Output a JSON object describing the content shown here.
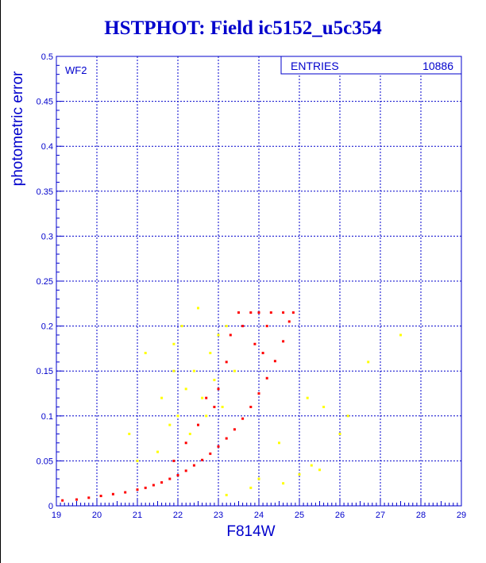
{
  "page": {
    "title": "HSTPHOT: Field ic5152_u5c354"
  },
  "stats_box": {
    "entries_label": "ENTRIES",
    "entries_value": "10886"
  },
  "chart_data": {
    "type": "scatter",
    "title": "HSTPHOT: Field ic5152_u5c354",
    "panel_label": "WF2",
    "xlabel": "F814W",
    "ylabel": "photometric error",
    "xlim": [
      19,
      29
    ],
    "ylim": [
      0,
      0.5
    ],
    "x_ticks": [
      19,
      20,
      21,
      22,
      23,
      24,
      25,
      26,
      27,
      28,
      29
    ],
    "y_ticks": [
      0,
      0.05,
      0.1,
      0.15,
      0.2,
      0.25,
      0.3,
      0.35,
      0.4,
      0.45,
      0.5
    ],
    "grid": true,
    "colors": {
      "axis": "#0000cc",
      "main_sequence": "#ff0000",
      "scatter": "#ffff00"
    },
    "series": [
      {
        "color": "#ff0000",
        "points": [
          [
            19.15,
            0.006
          ],
          [
            19.5,
            0.007
          ],
          [
            19.8,
            0.009
          ],
          [
            20.1,
            0.011
          ],
          [
            20.4,
            0.013
          ],
          [
            20.7,
            0.015
          ],
          [
            21.0,
            0.018
          ],
          [
            21.2,
            0.02
          ],
          [
            21.4,
            0.023
          ],
          [
            21.6,
            0.026
          ],
          [
            21.8,
            0.03
          ],
          [
            22.0,
            0.034
          ],
          [
            22.2,
            0.039
          ],
          [
            22.4,
            0.045
          ],
          [
            22.6,
            0.051
          ],
          [
            22.8,
            0.058
          ],
          [
            23.0,
            0.066
          ],
          [
            23.2,
            0.075
          ],
          [
            23.4,
            0.085
          ],
          [
            23.6,
            0.097
          ],
          [
            23.8,
            0.11
          ],
          [
            24.0,
            0.125
          ],
          [
            24.2,
            0.142
          ],
          [
            24.4,
            0.161
          ],
          [
            24.6,
            0.183
          ],
          [
            24.75,
            0.205
          ],
          [
            24.85,
            0.215
          ],
          [
            23.5,
            0.215
          ],
          [
            23.8,
            0.215
          ],
          [
            24.0,
            0.215
          ],
          [
            24.3,
            0.215
          ],
          [
            24.6,
            0.215
          ],
          [
            23.2,
            0.16
          ],
          [
            23.0,
            0.13
          ],
          [
            22.9,
            0.11
          ],
          [
            23.3,
            0.19
          ],
          [
            23.6,
            0.2
          ],
          [
            24.2,
            0.2
          ],
          [
            22.5,
            0.09
          ],
          [
            22.7,
            0.12
          ],
          [
            22.2,
            0.07
          ],
          [
            21.9,
            0.05
          ],
          [
            23.9,
            0.18
          ],
          [
            24.1,
            0.17
          ]
        ]
      },
      {
        "color": "#ffff00",
        "points": [
          [
            22.0,
            0.1
          ],
          [
            22.2,
            0.13
          ],
          [
            22.4,
            0.15
          ],
          [
            22.6,
            0.12
          ],
          [
            22.8,
            0.17
          ],
          [
            23.0,
            0.19
          ],
          [
            22.3,
            0.08
          ],
          [
            21.8,
            0.09
          ],
          [
            21.6,
            0.12
          ],
          [
            21.5,
            0.06
          ],
          [
            22.9,
            0.14
          ],
          [
            23.2,
            0.2
          ],
          [
            21.9,
            0.18
          ],
          [
            21.2,
            0.17
          ],
          [
            21.0,
            0.05
          ],
          [
            20.8,
            0.08
          ],
          [
            23.4,
            0.15
          ],
          [
            24.5,
            0.07
          ],
          [
            24.0,
            0.03
          ],
          [
            24.6,
            0.025
          ],
          [
            25.0,
            0.035
          ],
          [
            25.3,
            0.045
          ],
          [
            25.5,
            0.04
          ],
          [
            23.8,
            0.02
          ],
          [
            23.2,
            0.012
          ],
          [
            26.0,
            0.08
          ],
          [
            26.2,
            0.1
          ],
          [
            26.7,
            0.16
          ],
          [
            25.2,
            0.12
          ],
          [
            25.6,
            0.11
          ],
          [
            27.5,
            0.19
          ],
          [
            22.1,
            0.2
          ],
          [
            22.5,
            0.22
          ],
          [
            21.9,
            0.15
          ],
          [
            22.7,
            0.1
          ],
          [
            23.1,
            0.11
          ]
        ]
      }
    ]
  }
}
